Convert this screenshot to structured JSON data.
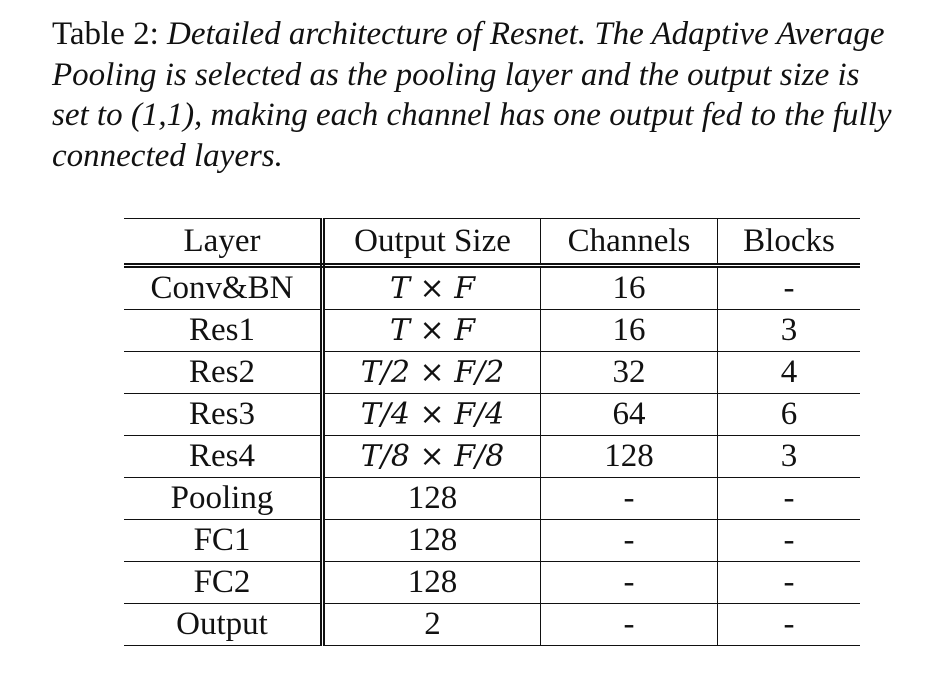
{
  "caption": {
    "label": "Table 2:",
    "line1": "Detailed architecture of Resnet. The Adaptive Average",
    "line2": "Pooling is selected as the pooling layer and the output size is",
    "line3": "set to (1,1), making each channel has one output fed to the fully",
    "line4": "connected layers."
  },
  "table": {
    "headers": [
      "Layer",
      "Output Size",
      "Channels",
      "Blocks"
    ],
    "rows": [
      [
        "Conv&BN",
        "T × F",
        "16",
        "-"
      ],
      [
        "Res1",
        "T × F",
        "16",
        "3"
      ],
      [
        "Res2",
        "T/2 × F/2",
        "32",
        "4"
      ],
      [
        "Res3",
        "T/4 × F/4",
        "64",
        "6"
      ],
      [
        "Res4",
        "T/8 × F/8",
        "128",
        "3"
      ],
      [
        "Pooling",
        "128",
        "-",
        "-"
      ],
      [
        "FC1",
        "128",
        "-",
        "-"
      ],
      [
        "FC2",
        "128",
        "-",
        "-"
      ],
      [
        "Output",
        "2",
        "-",
        "-"
      ]
    ]
  }
}
